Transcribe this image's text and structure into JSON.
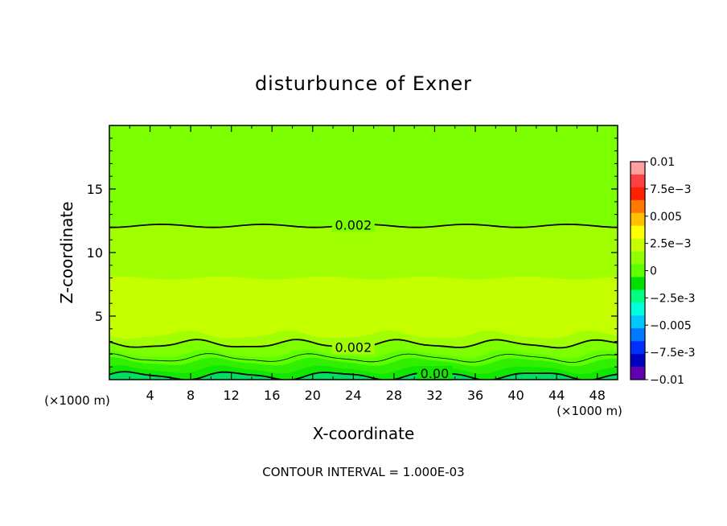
{
  "chart_data": {
    "type": "heatmap",
    "subtype": "filled-contour",
    "title": "disturbunce of Exner",
    "xlabel": "X-coordinate",
    "ylabel": "Z-coordinate",
    "x_unit_left": "(×1000 m)",
    "x_unit_right": "(×1000 m)",
    "footer": "CONTOUR INTERVAL = 1.000E-03",
    "xlim": [
      0,
      50
    ],
    "ylim": [
      0,
      20
    ],
    "x_ticks": [
      4,
      8,
      12,
      16,
      20,
      24,
      28,
      32,
      36,
      40,
      44,
      48
    ],
    "y_ticks": [
      5,
      10,
      15
    ],
    "x_tick_labels": [
      "4",
      "8",
      "12",
      "16",
      "20",
      "24",
      "28",
      "32",
      "36",
      "40",
      "44",
      "48"
    ],
    "y_tick_labels": [
      "5",
      "10",
      "15"
    ],
    "colorbar": {
      "ticks": [
        0.01,
        0.0075,
        0.005,
        0.0025,
        0,
        -0.0025,
        -0.005,
        -0.0075,
        -0.01
      ],
      "labels": [
        "0.01",
        "7.5e-3",
        "0.005",
        "2.5e-3",
        "0",
        "-2.5e-3",
        "-0.005",
        "-7.5e-3",
        "-0.01"
      ],
      "colors": [
        "#ffa0a0",
        "#ff4040",
        "#ff2000",
        "#ff7800",
        "#ffc000",
        "#ffff00",
        "#c8ff00",
        "#90ff00",
        "#60ff00",
        "#00e000",
        "#00ff80",
        "#00ffe0",
        "#00c8ff",
        "#0078ff",
        "#0030ff",
        "#0000c0",
        "#6000b0"
      ]
    },
    "bands": [
      {
        "z_bottom": 12.1,
        "z_top": 20.0,
        "value_range": [
          0.0015,
          0.002
        ],
        "color": "#7cff00"
      },
      {
        "z_bottom": 8.0,
        "z_top": 12.1,
        "value_range": [
          0.002,
          0.0025
        ],
        "color": "#a0ff00"
      },
      {
        "z_bottom": 3.5,
        "z_top": 8.0,
        "value_range": [
          0.0025,
          0.003
        ],
        "color": "#c4ff00"
      },
      {
        "z_bottom": 2.8,
        "z_top": 3.5,
        "value_range": [
          0.002,
          0.0025
        ],
        "color": "#a0ff00"
      },
      {
        "z_bottom": 2.0,
        "z_top": 2.8,
        "value_range": [
          0.0015,
          0.002
        ],
        "color": "#7cff00"
      },
      {
        "z_bottom": 1.4,
        "z_top": 2.0,
        "value_range": [
          0.001,
          0.0015
        ],
        "color": "#5cff00"
      },
      {
        "z_bottom": 0.8,
        "z_top": 1.4,
        "value_range": [
          0.0005,
          0.001
        ],
        "color": "#30f000"
      },
      {
        "z_bottom": 0.3,
        "z_top": 0.8,
        "value_range": [
          0,
          0.0005
        ],
        "color": "#10e800"
      },
      {
        "z_bottom": 0.0,
        "z_top": 0.3,
        "value_range": [
          -0.0005,
          0
        ],
        "color": "#00e060"
      }
    ],
    "contours": [
      {
        "value": 0.002,
        "label": "0.002",
        "z_mean": 12.1,
        "width": "thick",
        "label_x": 24
      },
      {
        "value": 0.002,
        "label": "0.002",
        "z_mean": 2.8,
        "width": "thick",
        "label_x": 24
      },
      {
        "value": 0.001,
        "label": "",
        "z_mean": 1.7,
        "width": "thin",
        "label_x": null
      },
      {
        "value": 0.0,
        "label": "0.00",
        "z_mean": 0.3,
        "width": "thick",
        "label_x": 32
      }
    ]
  }
}
